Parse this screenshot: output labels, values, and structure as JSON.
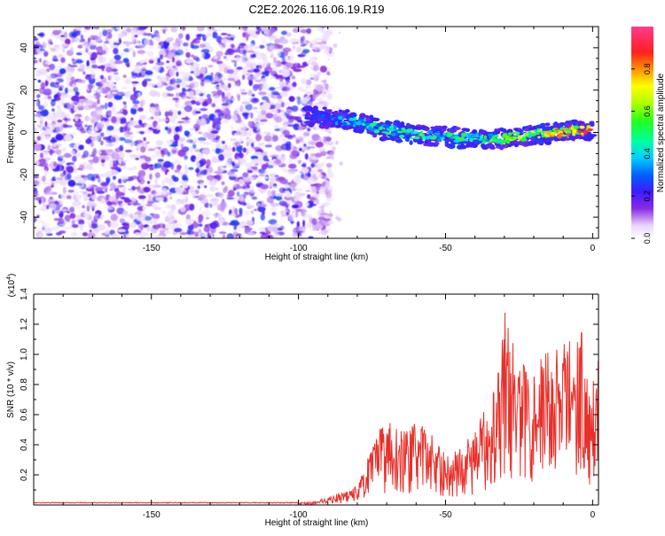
{
  "title": "C2E2.2026.116.06.19.R19",
  "chart_data": [
    {
      "type": "heatmap",
      "title": "C2E2.2026.116.06.19.R19",
      "xlabel": "Height of straight line (km)",
      "ylabel": "Frequency (Hz)",
      "xlim": [
        -190,
        2
      ],
      "ylim": [
        -50,
        50
      ],
      "xticks": [
        -150,
        -100,
        -50,
        0
      ],
      "yticks": [
        -40,
        -20,
        0,
        20,
        40
      ],
      "noise_region": {
        "x_range": [
          -190,
          -95
        ],
        "y_range": [
          -50,
          50
        ],
        "level": "0.05-0.2"
      },
      "signal_track": {
        "x": [
          -97,
          -90,
          -80,
          -70,
          -60,
          -50,
          -40,
          -30,
          -20,
          -10,
          -5,
          0
        ],
        "frequency": [
          8,
          7,
          5,
          1,
          -1,
          -2,
          -3,
          -3,
          -1,
          0,
          1,
          1
        ],
        "amplitude": [
          0.25,
          0.3,
          0.45,
          0.5,
          0.55,
          0.55,
          0.55,
          0.6,
          0.7,
          0.85,
          0.9,
          0.9
        ]
      },
      "colorbar": {
        "label": "Normalized spectral amplitude",
        "range": [
          0.0,
          1.0
        ],
        "ticks": [
          0.0,
          0.2,
          0.4,
          0.6,
          0.8
        ]
      }
    },
    {
      "type": "line",
      "xlabel": "Height of straight line (km)",
      "ylabel": "SNR (10 * v/v)",
      "yscale_label": "(x10",
      "yscale_exp": "4",
      "yscale_close": ")",
      "xlim": [
        -190,
        2
      ],
      "ylim": [
        0,
        1.4
      ],
      "xticks": [
        -150,
        -100,
        -50,
        0
      ],
      "yticks": [
        0.2,
        0.4,
        0.6,
        0.8,
        1.0,
        1.2,
        1.4
      ],
      "series": [
        {
          "name": "SNR",
          "color": "#e8302a",
          "x": [
            -190,
            -100,
            -95,
            -90,
            -85,
            -80,
            -75,
            -70,
            -65,
            -60,
            -55,
            -50,
            -45,
            -40,
            -35,
            -32,
            -30,
            -25,
            -20,
            -15,
            -10,
            -8,
            -5,
            -3,
            -1,
            0,
            2
          ],
          "envelope": [
            0.015,
            0.015,
            0.02,
            0.05,
            0.08,
            0.12,
            0.35,
            0.55,
            0.45,
            0.5,
            0.45,
            0.3,
            0.35,
            0.45,
            0.65,
            0.95,
            1.2,
            0.85,
            0.9,
            0.95,
            1.0,
            1.05,
            1.1,
            1.05,
            0.7,
            0.85,
            0.95
          ]
        }
      ]
    }
  ]
}
